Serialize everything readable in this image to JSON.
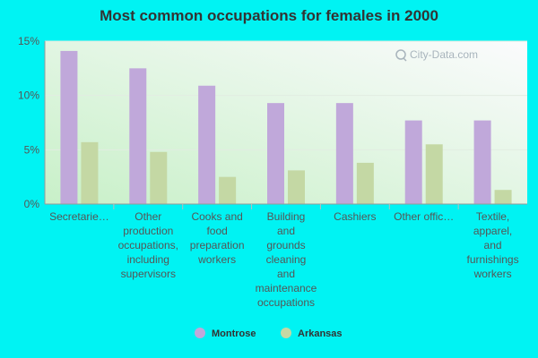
{
  "chart_data": {
    "type": "bar",
    "title": "Most common occupations for females in 2000",
    "categories": [
      [
        "Secretarie…"
      ],
      [
        "Other",
        "production",
        "occupations,",
        "including",
        "supervisors"
      ],
      [
        "Cooks and",
        "food",
        "preparation",
        "workers"
      ],
      [
        "Building",
        "and",
        "grounds",
        "cleaning",
        "and",
        "maintenance",
        "occupations"
      ],
      [
        "Cashiers"
      ],
      [
        "Other offic…"
      ],
      [
        "Textile,",
        "apparel,",
        "and",
        "furnishings",
        "workers"
      ]
    ],
    "series": [
      {
        "name": "Montrose",
        "color": "#c0a8da",
        "values": [
          14.1,
          12.5,
          10.9,
          9.3,
          9.3,
          7.7,
          7.7
        ]
      },
      {
        "name": "Arkansas",
        "color": "#c4d8a4",
        "values": [
          5.7,
          4.8,
          2.5,
          3.1,
          3.8,
          5.5,
          1.3
        ]
      }
    ],
    "ylim": [
      0,
      15
    ],
    "yticks": [
      0,
      5,
      10,
      15
    ],
    "ytick_format": "%",
    "legend_position": "bottom",
    "grid": true,
    "watermark": "City-Data.com"
  }
}
